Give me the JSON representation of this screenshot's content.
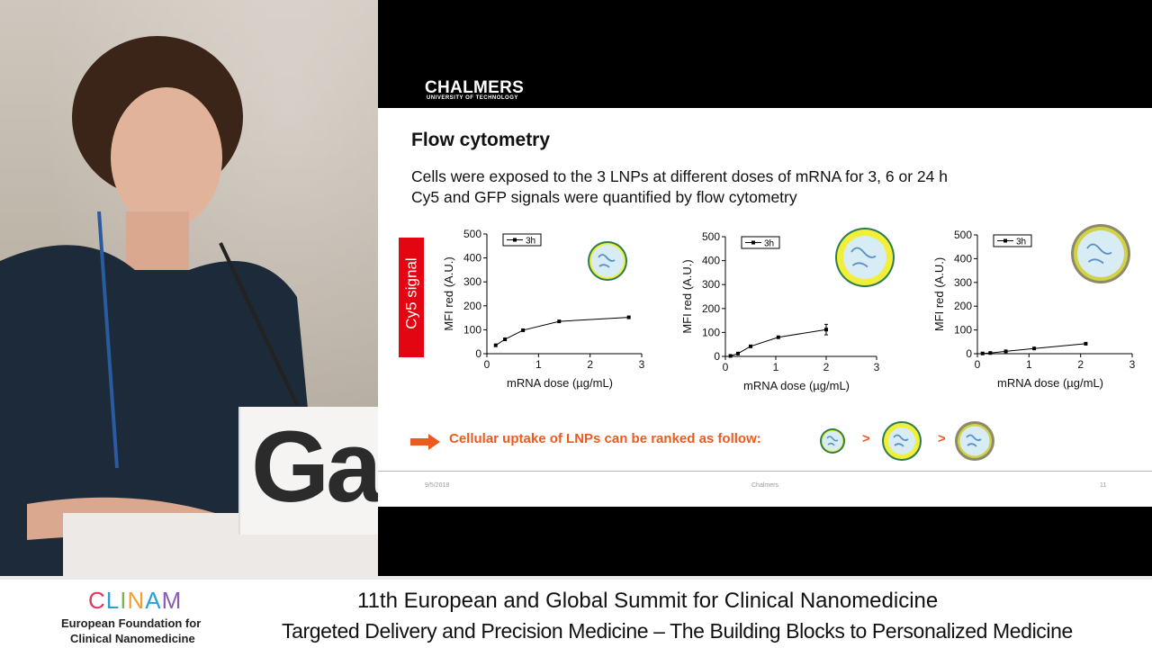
{
  "slide": {
    "logo_text": "CHALMERS",
    "logo_subtext": "UNIVERSITY OF TECHNOLOGY",
    "title": "Flow cytometry",
    "line1": "Cells were exposed to the 3 LNPs at different doses of mRNA for 3, 6 or 24 h",
    "line2": "Cy5 and GFP signals were quantified by flow cytometry",
    "side_label": "Cy5 signal",
    "conclusion": "Cellular uptake of LNPs can be ranked as follow:",
    "gt_symbol": ">",
    "footer_date": "9/5/2018",
    "footer_center": "Chalmers",
    "footer_page": "11"
  },
  "colors": {
    "side_label_bg": "#e20613",
    "conclusion": "#ec5a1e",
    "lnp_core": "#d7ecf4",
    "lnp_shell_green": "#2e7d4f",
    "lnp_shell_yellow": "#f2ef3a",
    "lnp_shell_gray": "#8b8b6a"
  },
  "podium_sign_text": "Ga",
  "banner": {
    "org_logo_letters": [
      "C",
      "L",
      "I",
      "N",
      "A",
      "M"
    ],
    "org_line1": "European Foundation for",
    "org_line2": "Clinical Nanomedicine",
    "summit_line1": "11th European and Global Summit for Clinical Nanomedicine",
    "summit_line2": "Targeted Delivery and Precision Medicine  – The Building Blocks to Personalized Medicine"
  },
  "chart_data": [
    {
      "type": "line",
      "xlabel": "mRNA dose (µg/mL)",
      "ylabel": "MFI red (A.U.)",
      "xlim": [
        0,
        3
      ],
      "ylim": [
        0,
        500
      ],
      "xticks": [
        0,
        1,
        2,
        3
      ],
      "yticks": [
        0,
        100,
        200,
        300,
        400,
        500
      ],
      "legend": "top-left",
      "series": [
        {
          "name": "3h",
          "x": [
            0.17,
            0.35,
            0.7,
            1.4,
            2.75
          ],
          "y": [
            35,
            60,
            98,
            135,
            152
          ],
          "err": [
            0,
            0,
            0,
            0,
            0
          ]
        }
      ],
      "lnp_icon": "small-green"
    },
    {
      "type": "line",
      "xlabel": "mRNA dose (µg/mL)",
      "ylabel": "MFI red (A.U.)",
      "xlim": [
        0,
        3
      ],
      "ylim": [
        0,
        500
      ],
      "xticks": [
        0,
        1,
        2,
        3
      ],
      "yticks": [
        0,
        100,
        200,
        300,
        400,
        500
      ],
      "legend": "top-left",
      "series": [
        {
          "name": "3h",
          "x": [
            0.1,
            0.25,
            0.5,
            1.05,
            2.0
          ],
          "y": [
            2,
            12,
            42,
            80,
            112
          ],
          "err": [
            0,
            0,
            0,
            0,
            22
          ]
        }
      ],
      "lnp_icon": "large-yellow"
    },
    {
      "type": "line",
      "xlabel": "mRNA dose (µg/mL)",
      "ylabel": "MFI red (A.U.)",
      "xlim": [
        0,
        3
      ],
      "ylim": [
        0,
        500
      ],
      "xticks": [
        0,
        1,
        2,
        3
      ],
      "yticks": [
        0,
        100,
        200,
        300,
        400,
        500
      ],
      "legend": "top-left",
      "series": [
        {
          "name": "3h",
          "x": [
            0.1,
            0.25,
            0.55,
            1.1,
            2.1
          ],
          "y": [
            1,
            3,
            10,
            22,
            42
          ],
          "err": [
            0,
            0,
            0,
            0,
            0
          ]
        }
      ],
      "lnp_icon": "large-gray"
    }
  ]
}
